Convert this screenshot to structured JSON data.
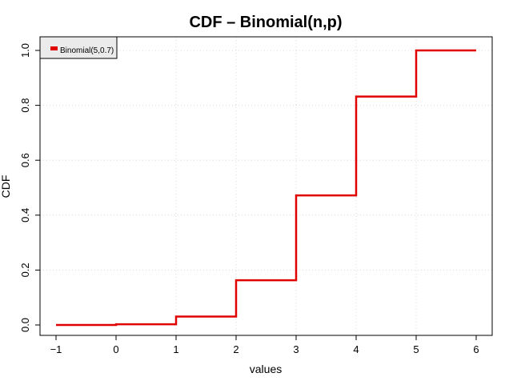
{
  "chart_data": {
    "type": "line",
    "step": true,
    "title": "CDF – Binomial(n,p)",
    "xlabel": "values",
    "ylabel": "CDF",
    "xlim": [
      -1,
      6
    ],
    "ylim": [
      0,
      1
    ],
    "x_ticks": [
      "−1",
      "0",
      "1",
      "2",
      "3",
      "4",
      "5",
      "6"
    ],
    "x_tick_values": [
      -1,
      0,
      1,
      2,
      3,
      4,
      5,
      6
    ],
    "y_ticks": [
      "0.0",
      "0.2",
      "0.4",
      "0.6",
      "0.8",
      "1.0"
    ],
    "y_tick_values": [
      0,
      0.2,
      0.4,
      0.6,
      0.8,
      1.0
    ],
    "grid": true,
    "legend_position": "top-left",
    "series": [
      {
        "name": "Binomial(5,0.7)",
        "color": "#e00000",
        "x": [
          -1,
          0,
          1,
          2,
          3,
          4,
          5,
          6
        ],
        "y": [
          0.0,
          0.00243,
          0.03078,
          0.16308,
          0.47178,
          0.83193,
          1.0,
          1.0
        ]
      }
    ]
  }
}
